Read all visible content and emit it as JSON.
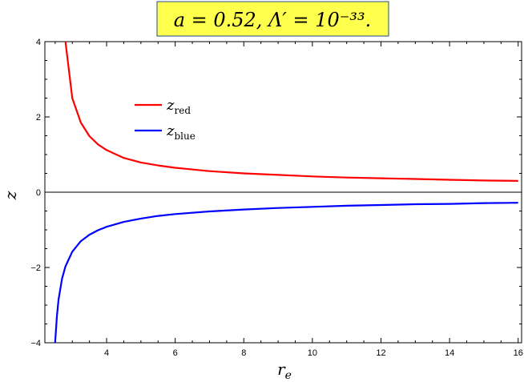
{
  "chart_data": {
    "type": "line",
    "title": "a = 0.52, Λ′ = 10⁻³³.",
    "xlabel": "r_e",
    "ylabel": "z",
    "xlim": [
      2.2,
      16.1
    ],
    "ylim": [
      -4,
      4
    ],
    "xticks": [
      "4",
      "6",
      "8",
      "10",
      "12",
      "14",
      "16"
    ],
    "yticks": [
      "4",
      "2",
      "0",
      "-2",
      "-4"
    ],
    "grid": false,
    "legend_position": "top-left",
    "series": [
      {
        "name": "z_red",
        "color": "#ff0000",
        "x": [
          2.8,
          3.0,
          3.25,
          3.5,
          3.75,
          4.0,
          4.5,
          5.0,
          5.5,
          6.0,
          7.0,
          8.0,
          9.0,
          10.0,
          11.0,
          12.0,
          13.0,
          14.0,
          15.0,
          16.0
        ],
        "y": [
          4.0,
          2.5,
          1.85,
          1.49,
          1.27,
          1.12,
          0.91,
          0.79,
          0.71,
          0.65,
          0.56,
          0.5,
          0.46,
          0.42,
          0.39,
          0.37,
          0.35,
          0.33,
          0.31,
          0.3
        ]
      },
      {
        "name": "z_blue",
        "color": "#0000ff",
        "x": [
          2.5,
          2.55,
          2.6,
          2.7,
          2.8,
          3.0,
          3.25,
          3.5,
          3.75,
          4.0,
          4.5,
          5.0,
          5.5,
          6.0,
          7.0,
          8.0,
          9.0,
          10.0,
          11.0,
          12.0,
          13.0,
          14.0,
          15.0,
          16.0
        ],
        "y": [
          -4.0,
          -3.3,
          -2.85,
          -2.3,
          -1.97,
          -1.58,
          -1.3,
          -1.13,
          -1.01,
          -0.92,
          -0.79,
          -0.7,
          -0.63,
          -0.58,
          -0.51,
          -0.46,
          -0.42,
          -0.39,
          -0.36,
          -0.34,
          -0.32,
          -0.31,
          -0.29,
          -0.28
        ]
      }
    ]
  }
}
